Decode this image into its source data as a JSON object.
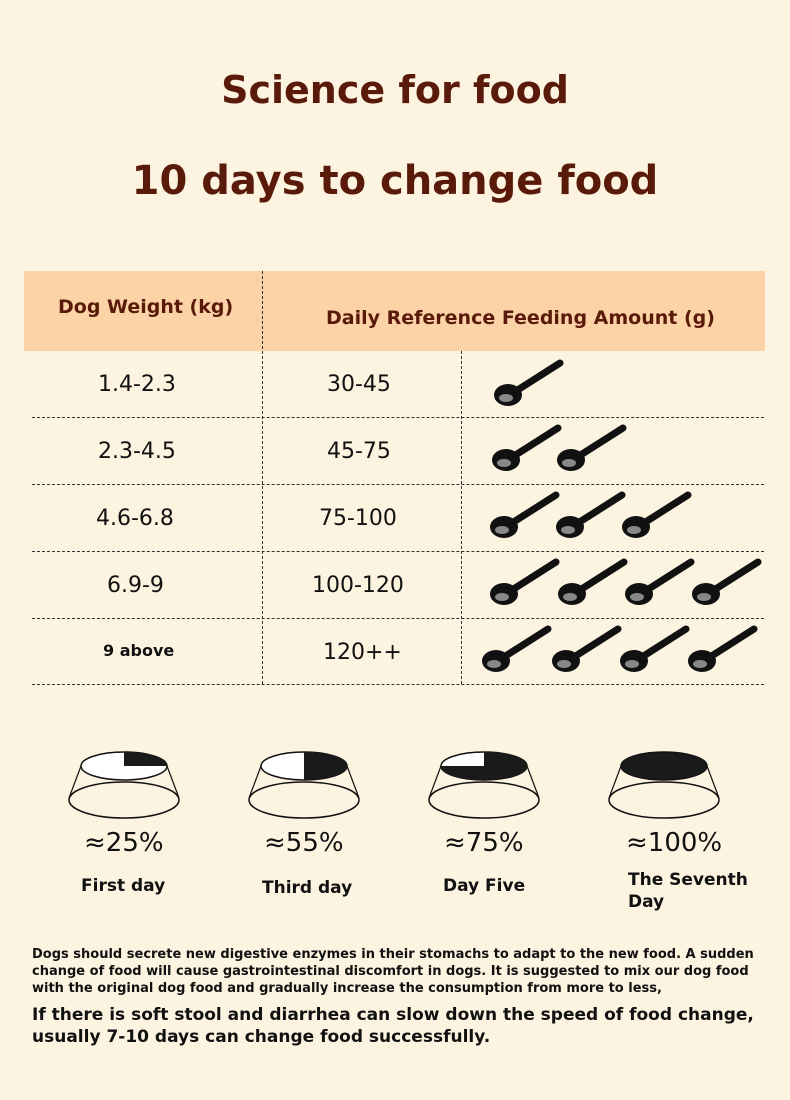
{
  "title": {
    "line1": "Science for food",
    "line2": "10 days to change food"
  },
  "table": {
    "headers": {
      "weight": "Dog Weight (kg)",
      "amount": "Daily Reference Feeding Amount (g)"
    },
    "rows": [
      {
        "weight": "1.4-2.3",
        "amount": "30-45",
        "spoons": 1
      },
      {
        "weight": "2.3-4.5",
        "amount": "45-75",
        "spoons": 2
      },
      {
        "weight": "4.6-6.8",
        "amount": "75-100",
        "spoons": 3
      },
      {
        "weight": "6.9-9",
        "amount": "100-120",
        "spoons": 4
      },
      {
        "weight": "9 above",
        "amount": "120++",
        "spoons": 4
      }
    ]
  },
  "transition": [
    {
      "percent": "≈25%",
      "day": "First day",
      "fill": 0.25
    },
    {
      "percent": "≈55%",
      "day": "Third day",
      "fill": 0.55
    },
    {
      "percent": "≈75%",
      "day": "Day Five",
      "fill": 0.75
    },
    {
      "percent": "≈100%",
      "day": "The Seventh Day",
      "fill": 1.0
    }
  ],
  "notes": {
    "paragraph": "Dogs should secrete new digestive enzymes in their stomachs to adapt to the new food. A sudden change of food will cause gastrointestinal discomfort in dogs. It is suggested to mix our dog food with the original dog food and gradually increase the consumption from more to less,",
    "emphasis": "If there is soft stool and diarrhea can slow down the speed of food change, usually 7-10 days can change food successfully."
  },
  "colors": {
    "background": "#fdf3e1",
    "header": "#fbd3a6",
    "title": "#5a1a0a",
    "ink": "#111111"
  },
  "icons": {
    "spoon": "spoon-icon",
    "bowl": "food-bowl-icon"
  }
}
